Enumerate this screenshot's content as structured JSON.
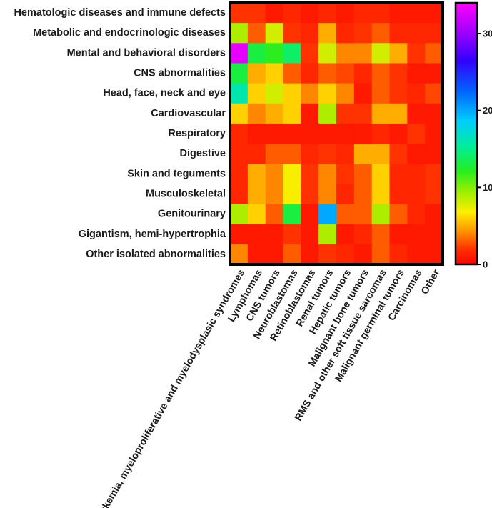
{
  "chart_data": {
    "type": "heatmap",
    "rows": [
      "Hematologic diseases and immune defects",
      "Metabolic and endocrinologic diseases",
      "Mental and behavioral disorders",
      "CNS abnormalities",
      "Head, face, neck and eye",
      "Cardiovascular",
      "Respiratory",
      "Digestive",
      "Skin and teguments",
      "Musculoskeletal",
      "Genitourinary",
      "Gigantism, hemi-hypertrophia",
      "Other isolated abnormalities"
    ],
    "columns": [
      "Leukemia, myeloproliferative and myelodysplasic syndromes",
      "Lymphomas",
      "CNS tumors",
      "Neuroblastomas",
      "Retinoblastomas",
      "Renal tumors",
      "Hepatic tumors",
      "Malignant bone tumors",
      "RMS and other soft tissue sarcomas",
      "Malignant germinal tumors",
      "Carcinomas",
      "Other"
    ],
    "values": [
      [
        2,
        2,
        1,
        1.5,
        1,
        1.5,
        1,
        1.5,
        1.5,
        1,
        1,
        1
      ],
      [
        9,
        3,
        8,
        2,
        1.5,
        5,
        1.5,
        2,
        3,
        1.5,
        1.5,
        1.5
      ],
      [
        33,
        13,
        12,
        14,
        2,
        8,
        4,
        4,
        8,
        5,
        2,
        3
      ],
      [
        13,
        5,
        6,
        3,
        1.5,
        3,
        2.5,
        1.5,
        3,
        2,
        1,
        1
      ],
      [
        16,
        6,
        8,
        6,
        4,
        6,
        4,
        1,
        3,
        2,
        1.5,
        2.5
      ],
      [
        6,
        4,
        5,
        6,
        1,
        9,
        2,
        2,
        5,
        5,
        1,
        1
      ],
      [
        1.5,
        1,
        1,
        1,
        1,
        1,
        1,
        1,
        1.5,
        1,
        2,
        1
      ],
      [
        1.5,
        1.5,
        3,
        3,
        1.5,
        2,
        1.5,
        5,
        5,
        2,
        1,
        1
      ],
      [
        1.5,
        5,
        4,
        7,
        2,
        4,
        2,
        3,
        6,
        1.5,
        1.5,
        2
      ],
      [
        1.5,
        5,
        4,
        7,
        2,
        4,
        1.5,
        3,
        6,
        1.5,
        1.5,
        2
      ],
      [
        9,
        6,
        3,
        13,
        1,
        20,
        3,
        3,
        9,
        3,
        1.5,
        1
      ],
      [
        1,
        1,
        1,
        2,
        1,
        9,
        1,
        1.5,
        3,
        1,
        1,
        1
      ],
      [
        4,
        1,
        1,
        3,
        1,
        2,
        1.5,
        1,
        3,
        1.5,
        1,
        1
      ]
    ],
    "colorbar": {
      "range": [
        0,
        34
      ],
      "ticks": [
        0,
        10,
        20,
        30
      ]
    },
    "title": "",
    "xlabel": "",
    "ylabel": ""
  }
}
